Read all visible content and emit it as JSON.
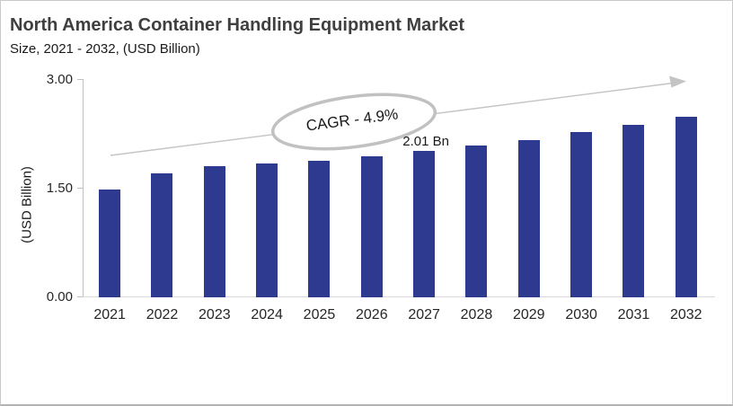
{
  "header": {
    "title": "North America Container Handling Equipment Market",
    "subtitle": "Size, 2021 - 2032, (USD Billion)"
  },
  "chart_data": {
    "type": "bar",
    "title": "North America Container Handling Equipment Market",
    "subtitle": "Size, 2021 - 2032, (USD Billion)",
    "categories": [
      "2021",
      "2022",
      "2023",
      "2024",
      "2025",
      "2026",
      "2027",
      "2028",
      "2029",
      "2030",
      "2031",
      "2032"
    ],
    "values": [
      1.48,
      1.71,
      1.8,
      1.84,
      1.88,
      1.94,
      2.01,
      2.09,
      2.17,
      2.27,
      2.37,
      2.49
    ],
    "unit": "USD Billion",
    "xlabel": "",
    "ylabel": "(USD Billion)",
    "ylim": [
      0,
      3
    ],
    "y_ticks": [
      "0.00",
      "1.50",
      "3.00"
    ],
    "grid": false,
    "legend_position": "none",
    "annotations": {
      "cagr_label": "CAGR - 4.9%",
      "data_label": {
        "text": "2.01 Bn",
        "category": "2027"
      },
      "trend_arrow": true
    },
    "colors": {
      "bar": "#2e3a90",
      "arrow": "#c4c4c4",
      "ellipse_stroke": "#c1c1c1",
      "title_text": "#3f3f3f",
      "axis": "#bfbfbf"
    }
  }
}
